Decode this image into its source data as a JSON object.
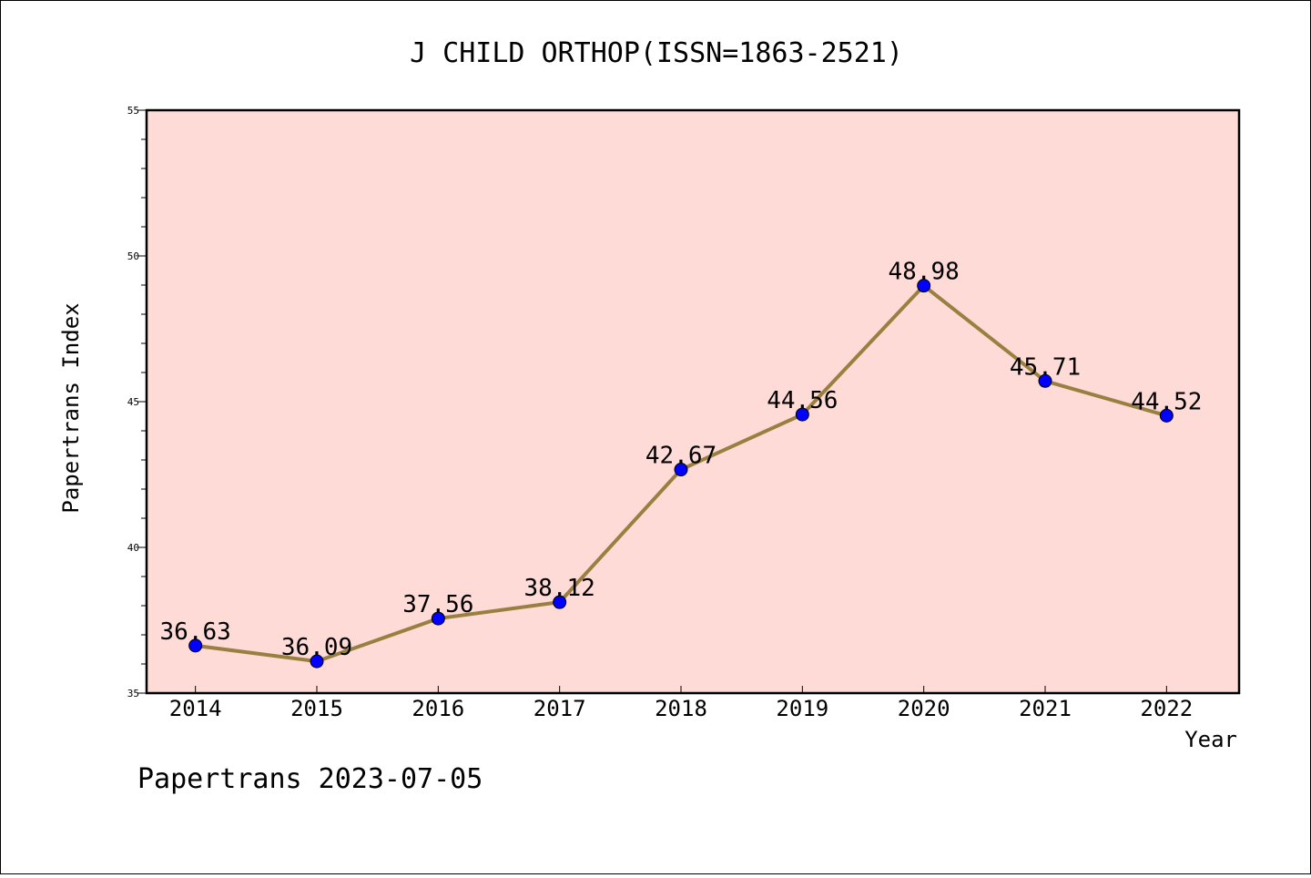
{
  "chart_data": {
    "type": "line",
    "title": "J CHILD ORTHOP(ISSN=1863-2521)",
    "xlabel": "Year",
    "ylabel": "Papertrans Index",
    "categories": [
      "2014",
      "2015",
      "2016",
      "2017",
      "2018",
      "2019",
      "2020",
      "2021",
      "2022"
    ],
    "values": [
      36.63,
      36.09,
      37.56,
      38.12,
      42.67,
      44.56,
      48.98,
      45.71,
      44.52
    ],
    "data_labels": [
      "36.63",
      "36.09",
      "37.56",
      "38.12",
      "42.67",
      "44.56",
      "48.98",
      "45.71",
      "44.52"
    ],
    "ylim": [
      35,
      55
    ],
    "yticks": [
      "35",
      "40",
      "45",
      "50",
      "55"
    ],
    "grid": false,
    "legend": "none",
    "colors": {
      "plot_background": "#ffdbd8",
      "line": "#9a8040",
      "marker": "#0000ff"
    }
  },
  "footer": {
    "text": "Papertrans 2023-07-05"
  }
}
